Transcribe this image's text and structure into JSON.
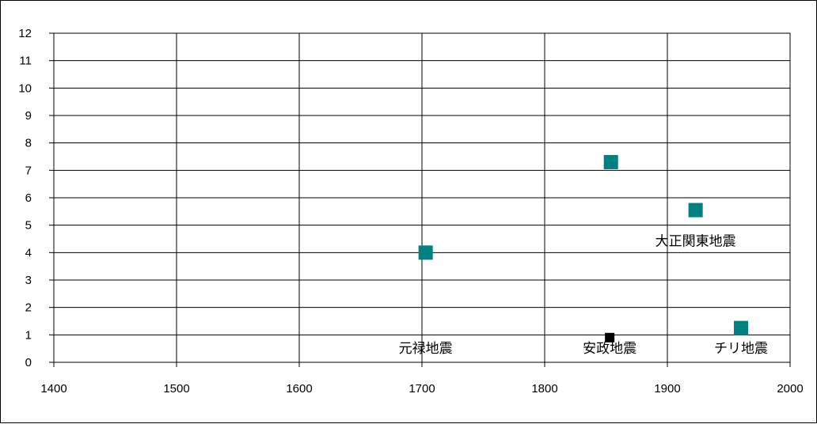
{
  "chart_data": {
    "type": "scatter",
    "xlim": [
      1400,
      2000
    ],
    "ylim": [
      0,
      12
    ],
    "x_ticks": [
      "1400",
      "1500",
      "1600",
      "1700",
      "1800",
      "1900",
      "2000"
    ],
    "y_ticks": [
      "0",
      "1",
      "2",
      "3",
      "4",
      "5",
      "6",
      "7",
      "8",
      "9",
      "10",
      "11",
      "12"
    ],
    "grid": true,
    "legend": "none",
    "series": [
      {
        "color": "#008080",
        "marker": "square",
        "points": [
          {
            "x": 1703,
            "y": 4.0
          },
          {
            "x": 1854,
            "y": 7.3
          },
          {
            "x": 1923,
            "y": 5.55
          },
          {
            "x": 1960,
            "y": 1.25
          }
        ]
      },
      {
        "color": "#000000",
        "marker": "square",
        "points": [
          {
            "x": 1853,
            "y": 0.9
          }
        ]
      }
    ],
    "annotations": [
      {
        "text": "元禄地震",
        "x": 1703,
        "y": 0.35
      },
      {
        "text": "安政地震",
        "x": 1853,
        "y": 0.35
      },
      {
        "text": "大正関東地震",
        "x": 1923,
        "y": 4.25
      },
      {
        "text": "チリ地震",
        "x": 1960,
        "y": 0.35
      }
    ]
  }
}
